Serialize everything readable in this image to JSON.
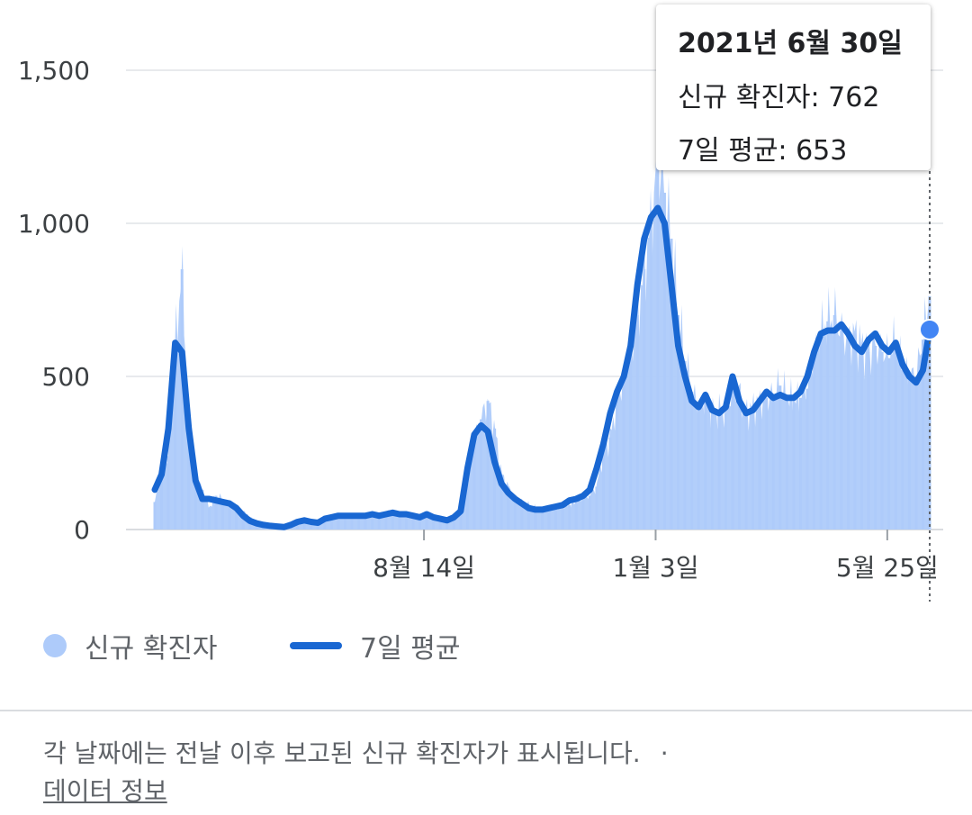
{
  "chart_data": {
    "type": "bar",
    "title": "",
    "xlabel": "",
    "ylabel": "",
    "ylim": [
      0,
      1650
    ],
    "yticks": [
      {
        "value": 0,
        "label": "0"
      },
      {
        "value": 500,
        "label": "500"
      },
      {
        "value": 1000,
        "label": "1,000"
      },
      {
        "value": 1500,
        "label": "1,500"
      }
    ],
    "xticks": [
      {
        "day": 165,
        "label": "8월 14일"
      },
      {
        "day": 307,
        "label": "1월 3일"
      },
      {
        "day": 449,
        "label": "5월 25일"
      }
    ],
    "series": [
      {
        "name": "신규 확진자",
        "kind": "bar",
        "color": "#aecbfa",
        "values": [
          90,
          170,
          240,
          600,
          850,
          380,
          160,
          130,
          70,
          110,
          100,
          80,
          70,
          60,
          40,
          25,
          15,
          12,
          10,
          8,
          12,
          15,
          30,
          25,
          20,
          30,
          40,
          50,
          40,
          45,
          50,
          45,
          50,
          45,
          55,
          60,
          50,
          55,
          45,
          40,
          50,
          45,
          40,
          30,
          35,
          70,
          150,
          290,
          360,
          420,
          330,
          180,
          140,
          100,
          90,
          80,
          70,
          60,
          65,
          70,
          75,
          80,
          90,
          100,
          110,
          140,
          250,
          300,
          420,
          500,
          580,
          700,
          850,
          1000,
          1200,
          1100,
          950,
          700,
          550,
          450,
          400,
          420,
          380,
          390,
          380,
          460,
          450,
          380,
          400,
          420,
          430,
          440,
          470,
          430,
          420,
          430,
          460,
          550,
          640,
          680,
          700,
          650,
          620,
          640,
          600,
          580,
          600,
          580,
          560,
          620,
          520,
          500,
          500,
          620,
          762
        ]
      },
      {
        "name": "7일 평균",
        "kind": "line",
        "color": "#1967d2",
        "values": [
          130,
          180,
          330,
          610,
          580,
          330,
          160,
          100,
          100,
          95,
          90,
          85,
          70,
          45,
          28,
          20,
          15,
          12,
          10,
          8,
          15,
          25,
          30,
          25,
          22,
          35,
          40,
          45,
          45,
          45,
          45,
          45,
          50,
          45,
          50,
          55,
          50,
          50,
          45,
          40,
          50,
          40,
          35,
          30,
          40,
          60,
          200,
          310,
          340,
          320,
          220,
          150,
          120,
          100,
          85,
          70,
          65,
          65,
          70,
          75,
          80,
          95,
          100,
          110,
          130,
          200,
          280,
          380,
          450,
          500,
          600,
          800,
          950,
          1020,
          1050,
          1000,
          800,
          600,
          500,
          420,
          400,
          440,
          390,
          380,
          400,
          500,
          420,
          380,
          390,
          420,
          450,
          430,
          440,
          430,
          430,
          450,
          500,
          580,
          640,
          650,
          650,
          670,
          640,
          600,
          580,
          620,
          640,
          600,
          580,
          610,
          540,
          500,
          480,
          520,
          653
        ]
      }
    ],
    "x_range_days": [
      0,
      475
    ],
    "selected": {
      "date_label": "2021년 6월 30일",
      "new_cases": 762,
      "avg7": 653
    }
  },
  "tooltip": {
    "title": "2021년 6월 30일",
    "line1": "신규 확진자: 762",
    "line2": "7일 평균: 653"
  },
  "legend": {
    "bars_label": "신규 확진자",
    "line_label": "7일 평균",
    "bars_color": "#aecbfa",
    "line_color": "#1967d2"
  },
  "footer": {
    "note": "각 날짜에는 전날 이후 보고된 신규 확진자가 표시됩니다.",
    "separator": "·",
    "link": "데이터 정보"
  }
}
